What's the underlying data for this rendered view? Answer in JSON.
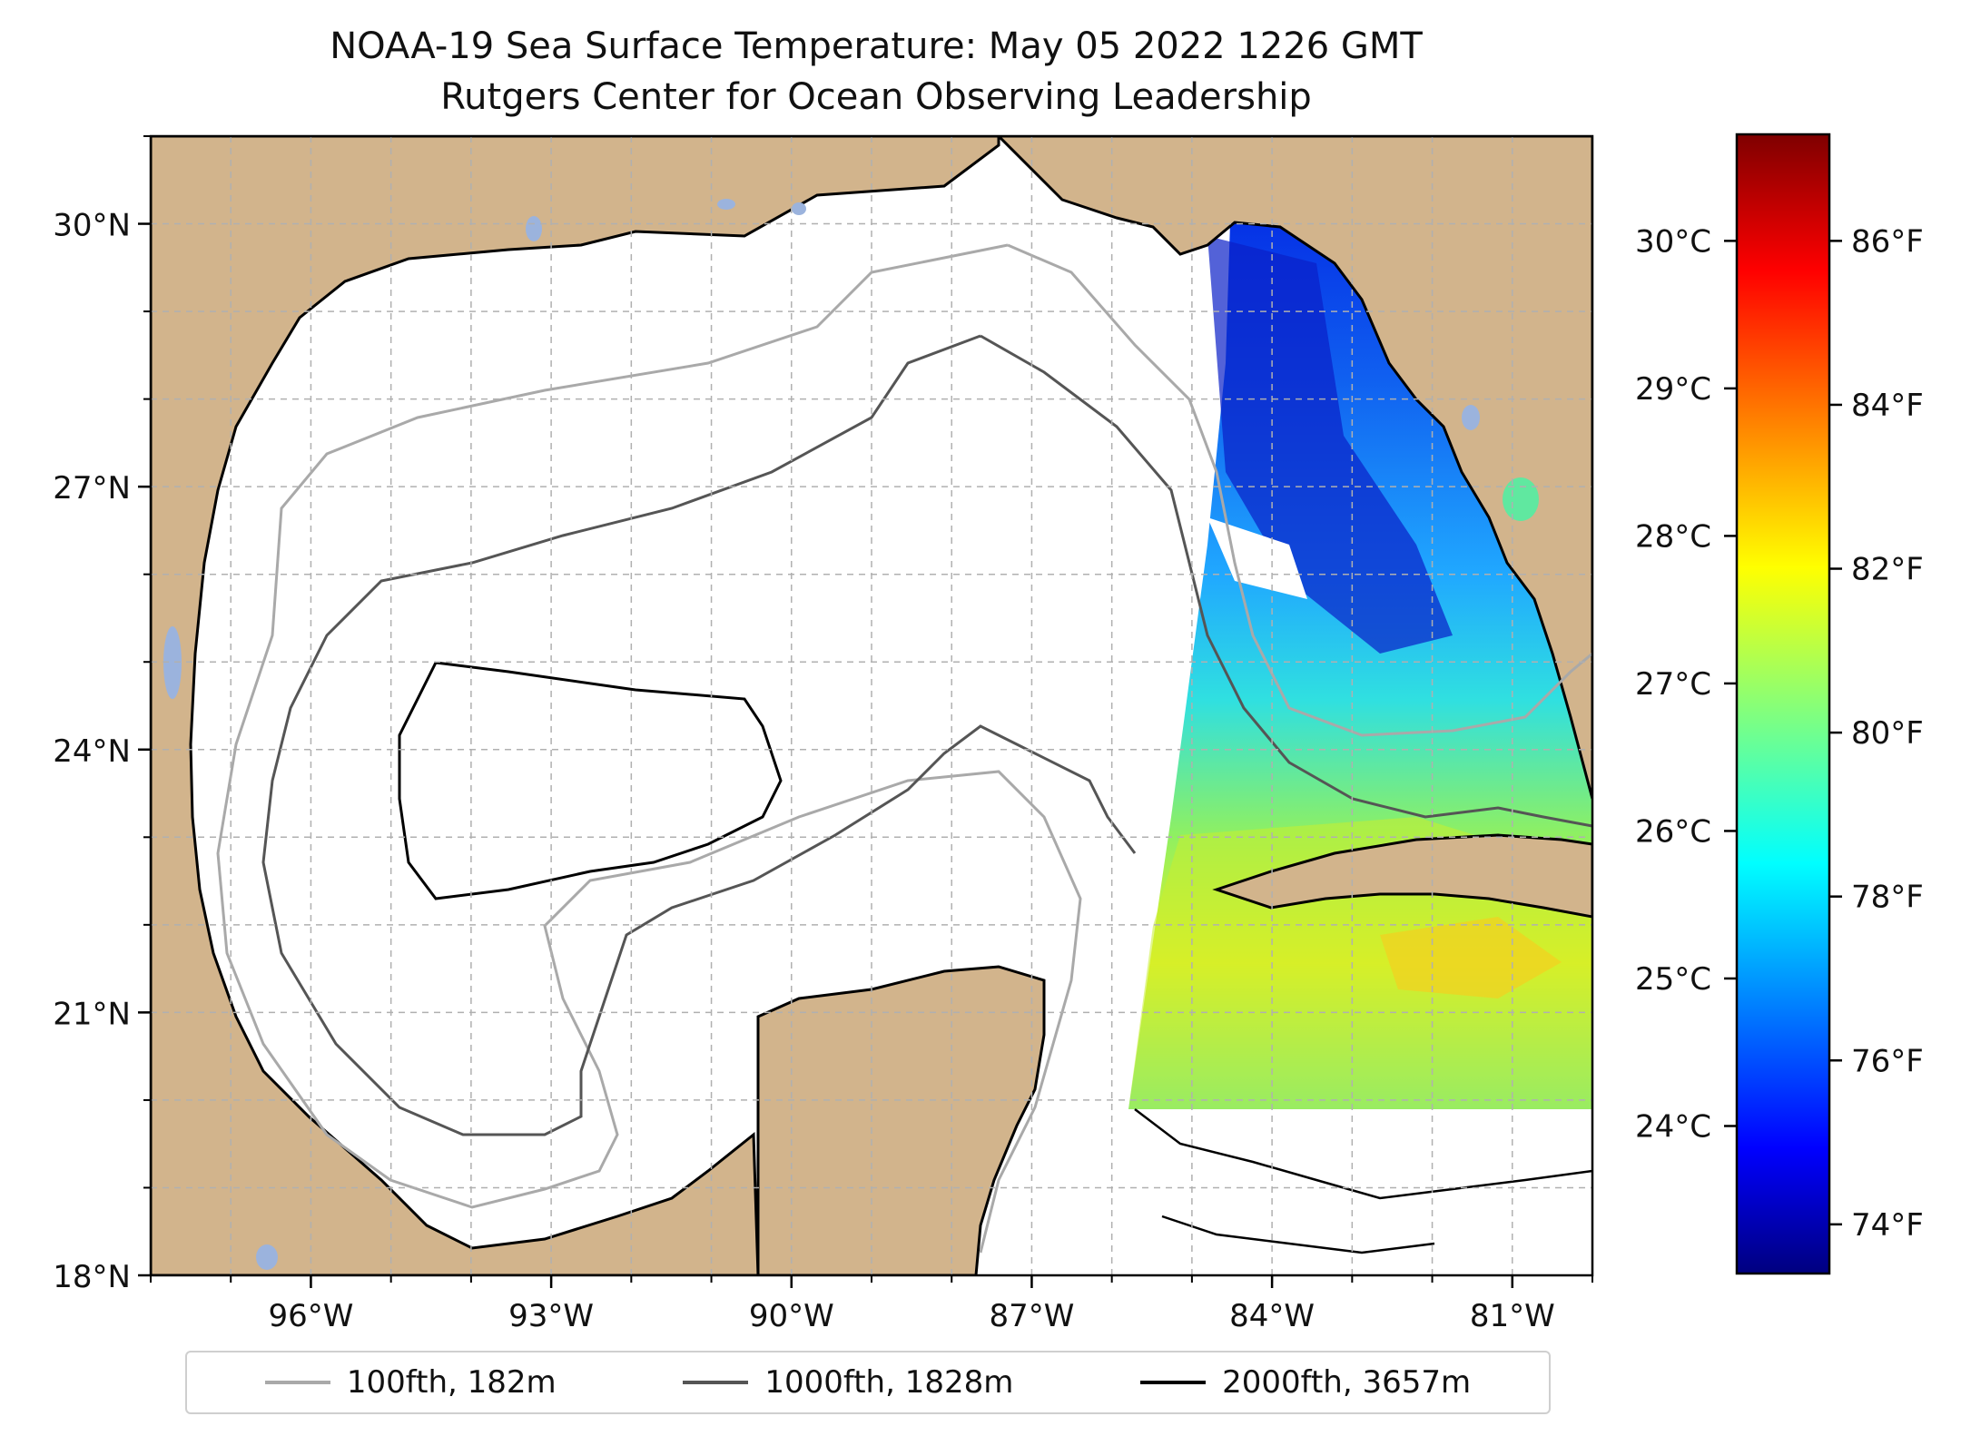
{
  "title": {
    "line1": "NOAA-19 Sea Surface Temperature: May 05 2022 1226 GMT",
    "line2": "Rutgers Center for Ocean Observing Leadership"
  },
  "map": {
    "lon_range": [
      -98,
      -80
    ],
    "lat_range": [
      18,
      31
    ],
    "lat_ticks": [
      {
        "value": 30,
        "label": "30°N"
      },
      {
        "value": 27,
        "label": "27°N"
      },
      {
        "value": 24,
        "label": "24°N"
      },
      {
        "value": 21,
        "label": "21°N"
      },
      {
        "value": 18,
        "label": "18°N"
      }
    ],
    "lon_ticks": [
      {
        "value": -96,
        "label": "96°W"
      },
      {
        "value": -93,
        "label": "93°W"
      },
      {
        "value": -90,
        "label": "90°W"
      },
      {
        "value": -87,
        "label": "87°W"
      },
      {
        "value": -84,
        "label": "84°W"
      },
      {
        "value": -81,
        "label": "81°W"
      }
    ],
    "grid": true,
    "colors": {
      "land": "#d2b48c",
      "ocean_nodata": "#ffffff",
      "lakes": "#9bb3dd",
      "coast": "#000000",
      "grid": "#b0b0b0"
    }
  },
  "colorbar": {
    "colormap": "jet",
    "celsius_ticks": [
      {
        "value": 30,
        "label": "30°C"
      },
      {
        "value": 29,
        "label": "29°C"
      },
      {
        "value": 28,
        "label": "28°C"
      },
      {
        "value": 27,
        "label": "27°C"
      },
      {
        "value": 26,
        "label": "26°C"
      },
      {
        "value": 25,
        "label": "25°C"
      },
      {
        "value": 24,
        "label": "24°C"
      }
    ],
    "fahrenheit_ticks": [
      {
        "value": 86,
        "label": "86°F"
      },
      {
        "value": 84,
        "label": "84°F"
      },
      {
        "value": 82,
        "label": "82°F"
      },
      {
        "value": 80,
        "label": "80°F"
      },
      {
        "value": 78,
        "label": "78°F"
      },
      {
        "value": 76,
        "label": "76°F"
      },
      {
        "value": 74,
        "label": "74°F"
      }
    ],
    "range_f": [
      73.4,
      87.3
    ]
  },
  "legend": {
    "items": [
      {
        "label": "100fth, 182m",
        "color": "#a9a9a9"
      },
      {
        "label": "1000fth, 1828m",
        "color": "#555555"
      },
      {
        "label": "2000fth, 3657m",
        "color": "#000000"
      }
    ]
  }
}
